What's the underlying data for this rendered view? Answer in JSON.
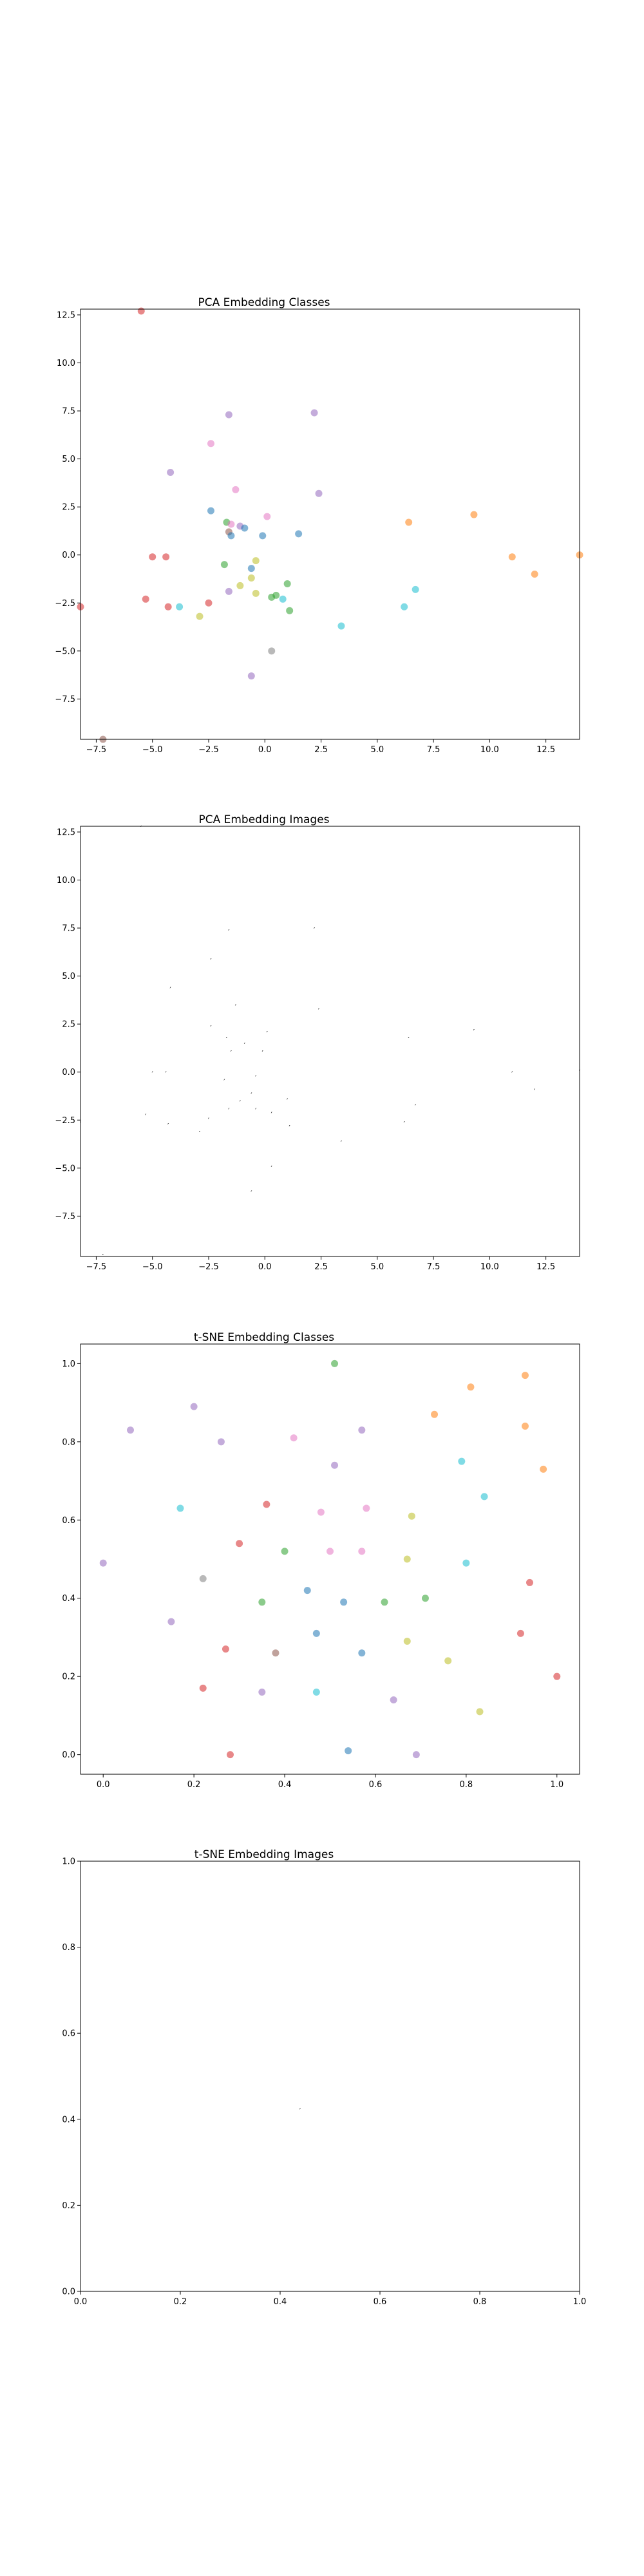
{
  "chart_data": [
    {
      "type": "scatter",
      "title": "PCA Embedding Classes",
      "xlim": [
        -8.2,
        14.0
      ],
      "ylim": [
        -9.6,
        12.8
      ],
      "xticks": [
        -7.5,
        -5.0,
        -2.5,
        0.0,
        2.5,
        5.0,
        7.5,
        10.0,
        12.5
      ],
      "xtick_labels": [
        "−7.5",
        "−5.0",
        "−2.5",
        "0.0",
        "2.5",
        "5.0",
        "7.5",
        "10.0",
        "12.5"
      ],
      "yticks": [
        -7.5,
        -5.0,
        -2.5,
        0.0,
        2.5,
        5.0,
        7.5,
        10.0,
        12.5
      ],
      "ytick_labels": [
        "−7.5",
        "−5.0",
        "−2.5",
        "0.0",
        "2.5",
        "5.0",
        "7.5",
        "10.0",
        "12.5"
      ],
      "grid": false,
      "points": [
        {
          "x": -5.5,
          "y": 12.7,
          "color": "#d62728"
        },
        {
          "x": -2.4,
          "y": 5.8,
          "color": "#e377c2"
        },
        {
          "x": -1.6,
          "y": 7.3,
          "color": "#9467bd"
        },
        {
          "x": 2.2,
          "y": 7.4,
          "color": "#9467bd"
        },
        {
          "x": -4.2,
          "y": 4.3,
          "color": "#9467bd"
        },
        {
          "x": -1.3,
          "y": 3.4,
          "color": "#e377c2"
        },
        {
          "x": 2.4,
          "y": 3.2,
          "color": "#9467bd"
        },
        {
          "x": -2.4,
          "y": 2.3,
          "color": "#1f77b4"
        },
        {
          "x": -1.7,
          "y": 1.7,
          "color": "#2ca02c"
        },
        {
          "x": -1.5,
          "y": 1.6,
          "color": "#e377c2"
        },
        {
          "x": -1.1,
          "y": 1.5,
          "color": "#9467bd"
        },
        {
          "x": -0.9,
          "y": 1.4,
          "color": "#1f77b4"
        },
        {
          "x": -1.6,
          "y": 1.2,
          "color": "#8c564b"
        },
        {
          "x": -1.5,
          "y": 1.0,
          "color": "#1f77b4"
        },
        {
          "x": 0.1,
          "y": 2.0,
          "color": "#e377c2"
        },
        {
          "x": -0.1,
          "y": 1.0,
          "color": "#1f77b4"
        },
        {
          "x": 1.5,
          "y": 1.1,
          "color": "#1f77b4"
        },
        {
          "x": -0.4,
          "y": -0.3,
          "color": "#bcbd22"
        },
        {
          "x": -0.6,
          "y": -0.7,
          "color": "#1f77b4"
        },
        {
          "x": -1.8,
          "y": -0.5,
          "color": "#2ca02c"
        },
        {
          "x": -0.6,
          "y": -1.2,
          "color": "#bcbd22"
        },
        {
          "x": -1.1,
          "y": -1.6,
          "color": "#bcbd22"
        },
        {
          "x": -1.6,
          "y": -1.9,
          "color": "#9467bd"
        },
        {
          "x": -0.4,
          "y": -2.0,
          "color": "#bcbd22"
        },
        {
          "x": 0.3,
          "y": -2.2,
          "color": "#2ca02c"
        },
        {
          "x": 0.5,
          "y": -2.1,
          "color": "#2ca02c"
        },
        {
          "x": 0.8,
          "y": -2.3,
          "color": "#17becf"
        },
        {
          "x": 1.0,
          "y": -1.5,
          "color": "#2ca02c"
        },
        {
          "x": 1.1,
          "y": -2.9,
          "color": "#2ca02c"
        },
        {
          "x": -5.0,
          "y": -0.1,
          "color": "#d62728"
        },
        {
          "x": -4.4,
          "y": -0.1,
          "color": "#d62728"
        },
        {
          "x": -5.3,
          "y": -2.3,
          "color": "#d62728"
        },
        {
          "x": -4.3,
          "y": -2.7,
          "color": "#d62728"
        },
        {
          "x": -3.8,
          "y": -2.7,
          "color": "#17becf"
        },
        {
          "x": -2.5,
          "y": -2.5,
          "color": "#d62728"
        },
        {
          "x": -2.9,
          "y": -3.2,
          "color": "#bcbd22"
        },
        {
          "x": -8.2,
          "y": -2.7,
          "color": "#d62728"
        },
        {
          "x": -7.2,
          "y": -9.6,
          "color": "#8c564b"
        },
        {
          "x": 0.3,
          "y": -5.0,
          "color": "#7f7f7f"
        },
        {
          "x": -0.6,
          "y": -6.3,
          "color": "#9467bd"
        },
        {
          "x": 3.4,
          "y": -3.7,
          "color": "#17becf"
        },
        {
          "x": 6.4,
          "y": 1.7,
          "color": "#ff7f0e"
        },
        {
          "x": 9.3,
          "y": 2.1,
          "color": "#ff7f0e"
        },
        {
          "x": 11.0,
          "y": -0.1,
          "color": "#ff7f0e"
        },
        {
          "x": 12.0,
          "y": -1.0,
          "color": "#ff7f0e"
        },
        {
          "x": 14.0,
          "y": 0.0,
          "color": "#ff7f0e"
        },
        {
          "x": 6.7,
          "y": -1.8,
          "color": "#17becf"
        },
        {
          "x": 6.2,
          "y": -2.7,
          "color": "#17becf"
        }
      ]
    },
    {
      "type": "scatter",
      "title": "PCA Embedding Images",
      "xlim": [
        -8.2,
        14.0
      ],
      "ylim": [
        -9.6,
        12.8
      ],
      "xticks": [
        -7.5,
        -5.0,
        -2.5,
        0.0,
        2.5,
        5.0,
        7.5,
        10.0,
        12.5
      ],
      "xtick_labels": [
        "−7.5",
        "−5.0",
        "−2.5",
        "0.0",
        "2.5",
        "5.0",
        "7.5",
        "10.0",
        "12.5"
      ],
      "yticks": [
        -7.5,
        -5.0,
        -2.5,
        0.0,
        2.5,
        5.0,
        7.5,
        10.0,
        12.5
      ],
      "ytick_labels": [
        "−7.5",
        "−5.0",
        "−2.5",
        "0.0",
        "2.5",
        "5.0",
        "7.5",
        "10.0",
        "12.5"
      ],
      "grid": false,
      "marker": "tiny-image-glyph",
      "points": [
        {
          "x": -5.5,
          "y": 12.7
        },
        {
          "x": -1.6,
          "y": 7.3
        },
        {
          "x": 2.2,
          "y": 7.4
        },
        {
          "x": -2.4,
          "y": 5.8
        },
        {
          "x": -4.2,
          "y": 4.3
        },
        {
          "x": -1.3,
          "y": 3.4
        },
        {
          "x": 2.4,
          "y": 3.2
        },
        {
          "x": -2.4,
          "y": 2.3
        },
        {
          "x": -1.7,
          "y": 1.7
        },
        {
          "x": -0.9,
          "y": 1.4
        },
        {
          "x": 0.1,
          "y": 2.0
        },
        {
          "x": -1.5,
          "y": 1.0
        },
        {
          "x": -0.1,
          "y": 1.0
        },
        {
          "x": -0.4,
          "y": -0.3
        },
        {
          "x": -1.8,
          "y": -0.5
        },
        {
          "x": -0.6,
          "y": -1.2
        },
        {
          "x": -1.1,
          "y": -1.6
        },
        {
          "x": -1.6,
          "y": -2.0
        },
        {
          "x": -0.4,
          "y": -2.0
        },
        {
          "x": 0.3,
          "y": -2.2
        },
        {
          "x": 1.0,
          "y": -1.5
        },
        {
          "x": 1.1,
          "y": -2.9
        },
        {
          "x": -5.0,
          "y": -0.1
        },
        {
          "x": -4.4,
          "y": -0.1
        },
        {
          "x": -5.3,
          "y": -2.3
        },
        {
          "x": -4.3,
          "y": -2.8
        },
        {
          "x": -2.5,
          "y": -2.5
        },
        {
          "x": -2.9,
          "y": -3.2
        },
        {
          "x": -8.2,
          "y": -2.7
        },
        {
          "x": -7.2,
          "y": -9.6
        },
        {
          "x": 0.3,
          "y": -5.0
        },
        {
          "x": -0.6,
          "y": -6.3
        },
        {
          "x": 3.4,
          "y": -3.7
        },
        {
          "x": 6.4,
          "y": 1.7
        },
        {
          "x": 9.3,
          "y": 2.1
        },
        {
          "x": 11.0,
          "y": -0.1
        },
        {
          "x": 12.0,
          "y": -1.0
        },
        {
          "x": 14.0,
          "y": 0.0
        },
        {
          "x": 6.7,
          "y": -1.8
        },
        {
          "x": 6.2,
          "y": -2.7
        }
      ]
    },
    {
      "type": "scatter",
      "title": "t-SNE Embedding Classes",
      "xlim": [
        -0.05,
        1.05
      ],
      "ylim": [
        -0.05,
        1.05
      ],
      "xticks": [
        0.0,
        0.2,
        0.4,
        0.6,
        0.8,
        1.0
      ],
      "xtick_labels": [
        "0.0",
        "0.2",
        "0.4",
        "0.6",
        "0.8",
        "1.0"
      ],
      "yticks": [
        0.0,
        0.2,
        0.4,
        0.6,
        0.8,
        1.0
      ],
      "ytick_labels": [
        "0.0",
        "0.2",
        "0.4",
        "0.6",
        "0.8",
        "1.0"
      ],
      "grid": false,
      "points": [
        {
          "x": 0.51,
          "y": 1.0,
          "color": "#2ca02c"
        },
        {
          "x": 0.93,
          "y": 0.97,
          "color": "#ff7f0e"
        },
        {
          "x": 0.81,
          "y": 0.94,
          "color": "#ff7f0e"
        },
        {
          "x": 0.2,
          "y": 0.89,
          "color": "#9467bd"
        },
        {
          "x": 0.73,
          "y": 0.87,
          "color": "#ff7f0e"
        },
        {
          "x": 0.06,
          "y": 0.83,
          "color": "#9467bd"
        },
        {
          "x": 0.57,
          "y": 0.83,
          "color": "#9467bd"
        },
        {
          "x": 0.93,
          "y": 0.84,
          "color": "#ff7f0e"
        },
        {
          "x": 0.26,
          "y": 0.8,
          "color": "#9467bd"
        },
        {
          "x": 0.42,
          "y": 0.81,
          "color": "#e377c2"
        },
        {
          "x": 0.79,
          "y": 0.75,
          "color": "#17becf"
        },
        {
          "x": 0.51,
          "y": 0.74,
          "color": "#9467bd"
        },
        {
          "x": 0.97,
          "y": 0.73,
          "color": "#ff7f0e"
        },
        {
          "x": 0.17,
          "y": 0.63,
          "color": "#17becf"
        },
        {
          "x": 0.36,
          "y": 0.64,
          "color": "#d62728"
        },
        {
          "x": 0.48,
          "y": 0.62,
          "color": "#e377c2"
        },
        {
          "x": 0.58,
          "y": 0.63,
          "color": "#e377c2"
        },
        {
          "x": 0.84,
          "y": 0.66,
          "color": "#17becf"
        },
        {
          "x": 0.68,
          "y": 0.61,
          "color": "#bcbd22"
        },
        {
          "x": 0.3,
          "y": 0.54,
          "color": "#d62728"
        },
        {
          "x": 0.4,
          "y": 0.52,
          "color": "#2ca02c"
        },
        {
          "x": 0.5,
          "y": 0.52,
          "color": "#e377c2"
        },
        {
          "x": 0.57,
          "y": 0.52,
          "color": "#e377c2"
        },
        {
          "x": 0.67,
          "y": 0.5,
          "color": "#bcbd22"
        },
        {
          "x": 0.8,
          "y": 0.49,
          "color": "#17becf"
        },
        {
          "x": 0.0,
          "y": 0.49,
          "color": "#9467bd"
        },
        {
          "x": 0.22,
          "y": 0.45,
          "color": "#7f7f7f"
        },
        {
          "x": 0.45,
          "y": 0.42,
          "color": "#1f77b4"
        },
        {
          "x": 0.94,
          "y": 0.44,
          "color": "#d62728"
        },
        {
          "x": 0.35,
          "y": 0.39,
          "color": "#2ca02c"
        },
        {
          "x": 0.53,
          "y": 0.39,
          "color": "#1f77b4"
        },
        {
          "x": 0.62,
          "y": 0.39,
          "color": "#2ca02c"
        },
        {
          "x": 0.71,
          "y": 0.4,
          "color": "#2ca02c"
        },
        {
          "x": 0.15,
          "y": 0.34,
          "color": "#9467bd"
        },
        {
          "x": 0.47,
          "y": 0.31,
          "color": "#1f77b4"
        },
        {
          "x": 0.67,
          "y": 0.29,
          "color": "#bcbd22"
        },
        {
          "x": 0.92,
          "y": 0.31,
          "color": "#d62728"
        },
        {
          "x": 0.27,
          "y": 0.27,
          "color": "#d62728"
        },
        {
          "x": 0.38,
          "y": 0.26,
          "color": "#8c564b"
        },
        {
          "x": 0.57,
          "y": 0.26,
          "color": "#1f77b4"
        },
        {
          "x": 0.76,
          "y": 0.24,
          "color": "#bcbd22"
        },
        {
          "x": 1.0,
          "y": 0.2,
          "color": "#d62728"
        },
        {
          "x": 0.22,
          "y": 0.17,
          "color": "#d62728"
        },
        {
          "x": 0.35,
          "y": 0.16,
          "color": "#9467bd"
        },
        {
          "x": 0.47,
          "y": 0.16,
          "color": "#17becf"
        },
        {
          "x": 0.64,
          "y": 0.14,
          "color": "#9467bd"
        },
        {
          "x": 0.83,
          "y": 0.11,
          "color": "#bcbd22"
        },
        {
          "x": 0.28,
          "y": 0.0,
          "color": "#d62728"
        },
        {
          "x": 0.54,
          "y": 0.01,
          "color": "#1f77b4"
        },
        {
          "x": 0.69,
          "y": 0.0,
          "color": "#9467bd"
        }
      ]
    },
    {
      "type": "scatter",
      "title": "t-SNE Embedding Images",
      "xlim": [
        0.0,
        1.0
      ],
      "ylim": [
        0.0,
        1.0
      ],
      "xticks": [
        0.0,
        0.2,
        0.4,
        0.6,
        0.8,
        1.0
      ],
      "xtick_labels": [
        "0.0",
        "0.2",
        "0.4",
        "0.6",
        "0.8",
        "1.0"
      ],
      "yticks": [
        0.0,
        0.2,
        0.4,
        0.6,
        0.8,
        1.0
      ],
      "ytick_labels": [
        "0.0",
        "0.2",
        "0.4",
        "0.6",
        "0.8",
        "1.0"
      ],
      "grid": false,
      "marker": "tiny-image-glyph",
      "points": [
        {
          "x": 0.44,
          "y": 0.42
        }
      ]
    }
  ]
}
